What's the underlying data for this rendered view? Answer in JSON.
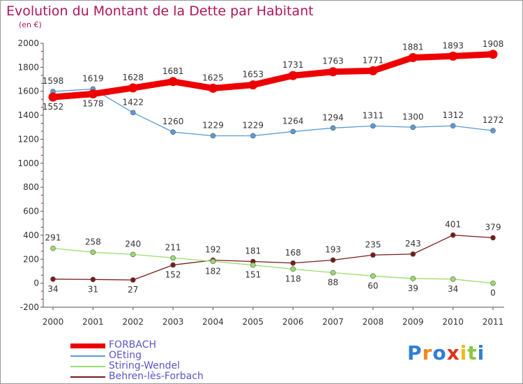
{
  "header": {
    "title": "Evolution du Montant de la Dette par Habitant",
    "unit": "(en €)"
  },
  "brand": {
    "letters": [
      "P",
      "r",
      "o",
      "x",
      "i",
      "t",
      "i"
    ],
    "colors": [
      "#2e7fd6",
      "#f08a1c",
      "#2e7fd6",
      "#e0301e",
      "#f0b81c",
      "#8cc63e",
      "#2e7fd6"
    ]
  },
  "chart_data": {
    "type": "line",
    "title": "Evolution du Montant de la Dette par Habitant",
    "ylabel": "(en €)",
    "xlabel": "",
    "ylim": [
      -200,
      2000
    ],
    "yticks": [
      -200,
      0,
      200,
      400,
      600,
      800,
      1000,
      1200,
      1400,
      1600,
      1800,
      2000
    ],
    "categories": [
      "2000",
      "2001",
      "2002",
      "2003",
      "2004",
      "2005",
      "2006",
      "2007",
      "2008",
      "2009",
      "2010",
      "2011"
    ],
    "grid": false,
    "legend_position": "bottom-left",
    "series": [
      {
        "name": "FORBACH",
        "color": "#ee0000",
        "style": "thick",
        "values": [
          1552,
          1578,
          1628,
          1681,
          1625,
          1653,
          1731,
          1763,
          1771,
          1881,
          1893,
          1908
        ]
      },
      {
        "name": "OEting",
        "color": "#5b9bd5",
        "style": "thin",
        "values": [
          1598,
          1619,
          1422,
          1260,
          1229,
          1229,
          1264,
          1294,
          1311,
          1300,
          1312,
          1272
        ]
      },
      {
        "name": "Stiring-Wendel",
        "color": "#9bdc6a",
        "style": "thin",
        "values": [
          291,
          258,
          240,
          211,
          182,
          151,
          118,
          88,
          60,
          39,
          34,
          0
        ]
      },
      {
        "name": "Behren-lès-Forbach",
        "color": "#7a1a1a",
        "style": "thin",
        "values": [
          34,
          31,
          27,
          152,
          192,
          181,
          168,
          193,
          235,
          243,
          401,
          379
        ]
      }
    ]
  }
}
